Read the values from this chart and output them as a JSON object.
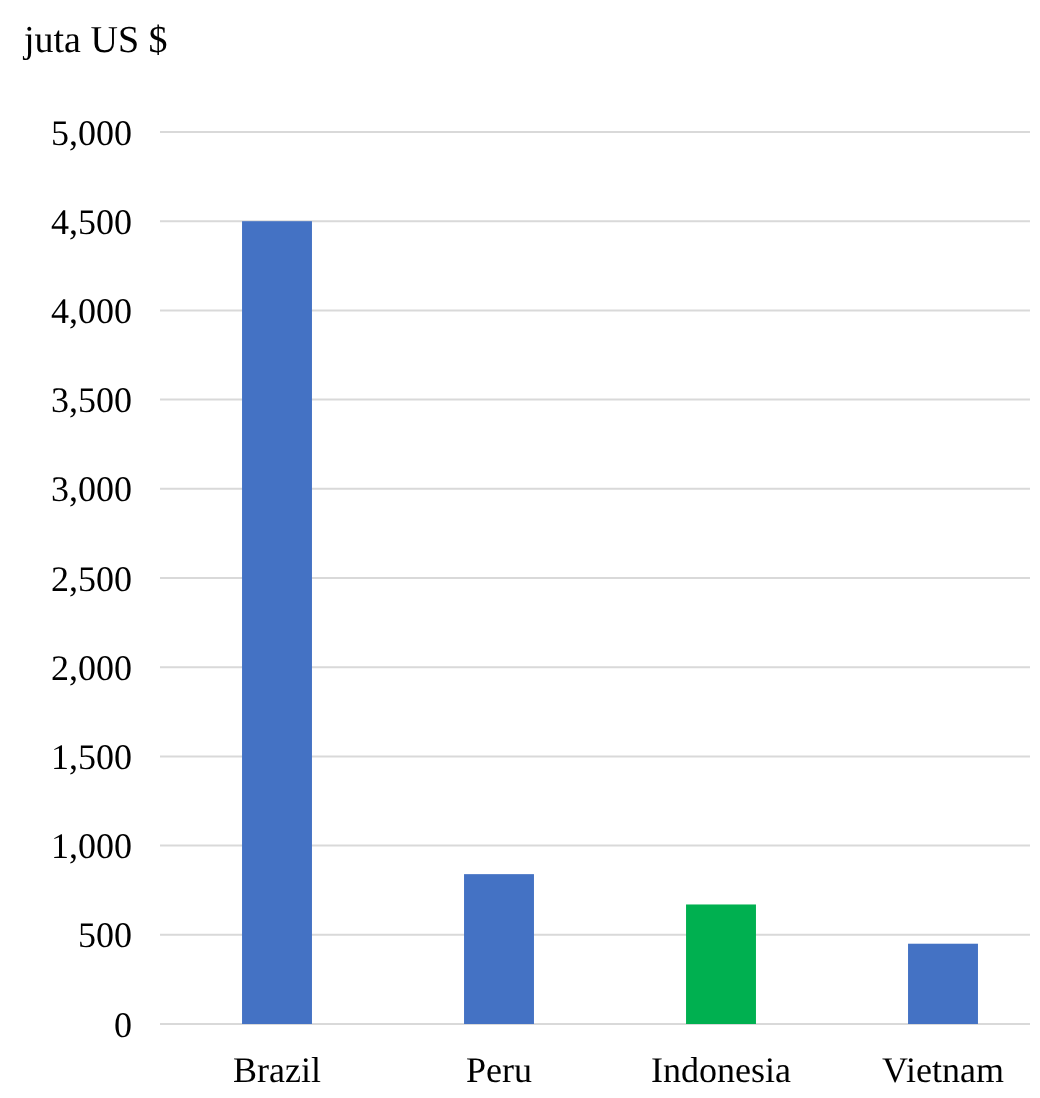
{
  "chart_data": {
    "type": "bar",
    "ylabel": "juta US $",
    "categories": [
      "Brazil",
      "Peru",
      "Indonesia",
      "Vietnam"
    ],
    "values": [
      4500,
      840,
      670,
      450
    ],
    "colors": [
      "#4472c4",
      "#4472c4",
      "#00b050",
      "#4472c4"
    ],
    "ylim": [
      0,
      5000
    ],
    "yticks": [
      {
        "value": 0,
        "label": "0"
      },
      {
        "value": 500,
        "label": "500"
      },
      {
        "value": 1000,
        "label": "1,000"
      },
      {
        "value": 1500,
        "label": "1,500"
      },
      {
        "value": 2000,
        "label": "2,000"
      },
      {
        "value": 2500,
        "label": "2,500"
      },
      {
        "value": 3000,
        "label": "3,000"
      },
      {
        "value": 3500,
        "label": "3,500"
      },
      {
        "value": 4000,
        "label": "4,000"
      },
      {
        "value": 4500,
        "label": "4,500"
      },
      {
        "value": 5000,
        "label": "5,000"
      }
    ],
    "grid": "y"
  }
}
